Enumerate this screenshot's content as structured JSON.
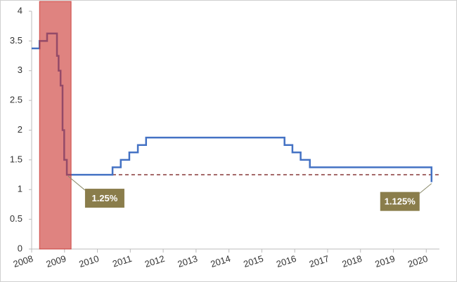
{
  "chart_data": {
    "type": "line",
    "step": "post",
    "x": [
      2008,
      2008.24,
      2008.47,
      2008.77,
      2008.82,
      2008.88,
      2008.94,
      2008.99,
      2009.07,
      2010.46,
      2010.71,
      2010.97,
      2011.23,
      2011.48,
      2015.69,
      2015.93,
      2016.18,
      2016.46,
      2020.16
    ],
    "values": [
      3.375,
      3.5,
      3.625,
      3.25,
      3.0,
      2.75,
      2.0,
      1.5,
      1.25,
      1.375,
      1.5,
      1.625,
      1.75,
      1.875,
      1.75,
      1.625,
      1.5,
      1.375,
      1.125
    ],
    "color": "#4472c4",
    "xlim": [
      2008,
      2020.4
    ],
    "xticks": [
      2008,
      2009,
      2010,
      2011,
      2012,
      2013,
      2014,
      2015,
      2016,
      2017,
      2018,
      2019,
      2020
    ],
    "ylim": [
      0,
      4
    ],
    "yticks": [
      0,
      0.5,
      1,
      1.5,
      2,
      2.5,
      3,
      3.5,
      4
    ],
    "shade": {
      "xlim": [
        2008.24,
        2009.2
      ],
      "color": "#c9302c"
    },
    "reference_line": {
      "value": 1.25,
      "xlim": [
        2009.11,
        2020.4
      ],
      "color": "#7b2424"
    },
    "annotations": [
      {
        "text": "1.25%",
        "x": 2009.11,
        "value": 1.25
      },
      {
        "text": "1.125%",
        "x": 2020.16,
        "value": 1.125
      }
    ],
    "annotation_color": "#8a7d4b"
  }
}
